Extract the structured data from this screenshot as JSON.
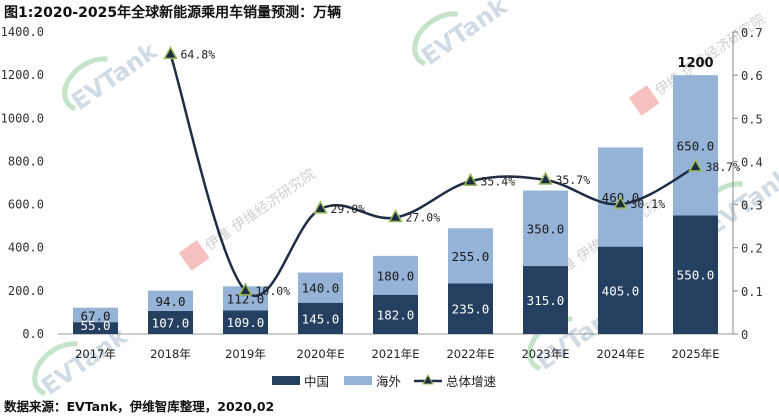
{
  "title": "图1:2020-2025年全球新能源乘用车销量预测：万辆",
  "source": "数据来源：EVTank，伊维智库整理，2020,02",
  "colors": {
    "china": "#243F60",
    "overseas": "#95B3D7",
    "line": "#1F2D44",
    "marker": "#9BBB59"
  },
  "chart_data": {
    "type": "bar",
    "title": "图1:2020-2025年全球新能源乘用车销量预测：万辆",
    "categories": [
      "2017年",
      "2018年",
      "2019年",
      "2020年E",
      "2021年E",
      "2022年E",
      "2023年E",
      "2024年E",
      "2025年E"
    ],
    "series": [
      {
        "name": "中国",
        "type": "bar",
        "stack": "total",
        "values": [
          55.0,
          107.0,
          109.0,
          145.0,
          182.0,
          235.0,
          315.0,
          405.0,
          550.0
        ]
      },
      {
        "name": "海外",
        "type": "bar",
        "stack": "total",
        "values": [
          67.0,
          94.0,
          112.0,
          140.0,
          180.0,
          255.0,
          350.0,
          460.0,
          650.0
        ]
      },
      {
        "name": "总体增速",
        "type": "line",
        "axis": "right",
        "values": [
          null,
          0.648,
          0.1,
          0.29,
          0.27,
          0.354,
          0.357,
          0.301,
          0.387
        ],
        "labels": [
          null,
          "64.8%",
          "10.0%",
          "29.0%",
          "27.0%",
          "35.4%",
          "35.7%",
          "30.1%",
          "38.7%"
        ]
      }
    ],
    "annotations": [
      {
        "category": "2025年E",
        "text": "1200"
      }
    ],
    "ylim": [
      0,
      1400
    ],
    "yticks": [
      "0.0",
      "200.0",
      "400.0",
      "600.0",
      "800.0",
      "1000.0",
      "1200.0",
      "1400.0"
    ],
    "y2lim": [
      0,
      0.7
    ],
    "y2ticks": [
      "0",
      "0.1",
      "0.2",
      "0.3",
      "0.4",
      "0.5",
      "0.6",
      "0.7"
    ],
    "xlabel": "",
    "ylabel": "",
    "y2label": "",
    "legend": [
      "中国",
      "海外",
      "总体增速"
    ],
    "legend_position": "bottom",
    "grid": false
  }
}
